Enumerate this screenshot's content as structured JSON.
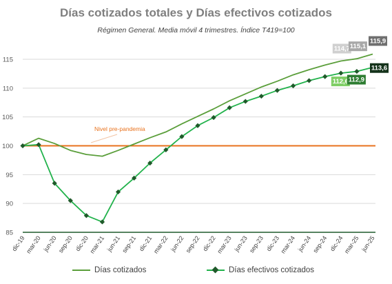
{
  "chart_data": {
    "type": "line",
    "title": "Días cotizados totales y Días efectivos cotizados",
    "subtitle": "Régimen General. Media móvil 4 trimestres. Índice T419=100",
    "categories": [
      "dic-19",
      "mar-20",
      "jun-20",
      "sep-20",
      "dic-20",
      "mar-21",
      "jun-21",
      "sep-21",
      "dic-21",
      "mar-22",
      "jun-22",
      "sep-22",
      "dic-22",
      "mar-23",
      "jun-23",
      "sep-23",
      "dic-23",
      "mar-24",
      "jun-24",
      "sep-24",
      "dic-24",
      "mar-25",
      "jun-25"
    ],
    "ylim": [
      85,
      117
    ],
    "yticks": [
      85,
      90,
      95,
      100,
      105,
      110,
      115
    ],
    "series": [
      {
        "name": "Días cotizados",
        "color": "#5a9e3a",
        "marker": "none",
        "values": [
          100.0,
          101.3,
          100.4,
          99.2,
          98.5,
          98.2,
          99.2,
          100.3,
          101.4,
          102.4,
          103.8,
          105.1,
          106.4,
          107.8,
          109.0,
          110.2,
          111.2,
          112.3,
          113.2,
          114.0,
          114.7,
          115.1,
          115.9
        ]
      },
      {
        "name": "Días efectivos cotizados",
        "color": "#21b24b",
        "marker": "diamond",
        "values": [
          100.0,
          100.2,
          93.5,
          90.5,
          87.9,
          86.8,
          92.0,
          94.4,
          97.0,
          99.3,
          101.6,
          103.5,
          104.9,
          106.6,
          107.7,
          108.6,
          109.6,
          110.4,
          111.3,
          112.0,
          112.6,
          112.9,
          113.6
        ]
      }
    ],
    "reference_line": {
      "label": "Nivel pre-pandemia",
      "value": 100,
      "color": "#e8711c"
    },
    "data_labels": [
      {
        "text": "114,7",
        "series": 0,
        "index": 20,
        "bg": "#d0d0d0"
      },
      {
        "text": "115,1",
        "series": 0,
        "index": 21,
        "bg": "#a8a8a8"
      },
      {
        "text": "115,9",
        "series": 0,
        "index": 22,
        "bg": "#6f6f6f"
      },
      {
        "text": "112,6",
        "series": 1,
        "index": 20,
        "bg": "#7fce66"
      },
      {
        "text": "112,9",
        "series": 1,
        "index": 21,
        "bg": "#2e7d32"
      },
      {
        "text": "113,6",
        "series": 1,
        "index": 22,
        "bg": "#14321a"
      }
    ],
    "grid": true,
    "legend_position": "bottom"
  }
}
